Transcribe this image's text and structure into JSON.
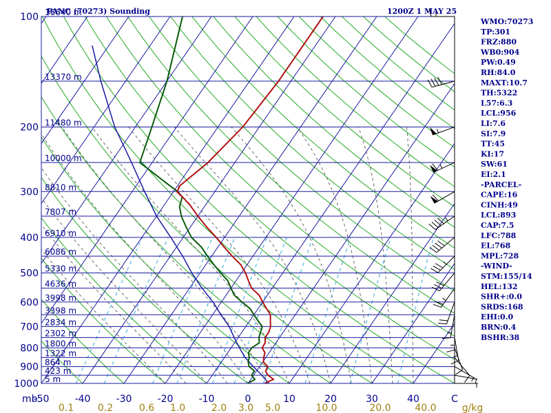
{
  "header": {
    "station": "PANC (70273) Sounding",
    "time": "1200Z  1 MAY 25"
  },
  "sidebar": [
    "WMO:70273",
    "TP:301",
    "FRZ:880",
    "WB0:904",
    "PW:0.49",
    "RH:84.0",
    "MAXT:10.7",
    "TH:5322",
    "L57:6.3",
    "LCL:956",
    "LI:7.6",
    "SI:7.9",
    "TT:45",
    "KI:17",
    "SW:61",
    "EI:2.1",
    "-PARCEL-",
    "CAPE:16",
    "CINH:49",
    "LCL:893",
    "CAP:7.5",
    "LFC:788",
    "EL:768",
    "MPL:728",
    "-WIND-",
    "STM:155/14",
    "HEL:132",
    "SHR+:0.0",
    "SRDS:168",
    "EHI:0.0",
    "BRN:0.4",
    "BSHR:38"
  ],
  "colors": {
    "isobar": "#1a1aa0",
    "isotherm": "#1a1aa0",
    "dry_adiabat": "#22aa22",
    "moist_adiabat": "#666666",
    "mixing_ratio": "#33aadd",
    "temperature": "#b01010",
    "dewpoint": "#0a5a0a",
    "parcel": "#1a1aa0",
    "text": "#00008b",
    "mixing_label": "#a08010"
  },
  "chart_data": {
    "type": "skew-t",
    "xlabel_units_left": "mb",
    "xlabel_units_right": "g/kg",
    "pressure_levels": [
      100,
      200,
      300,
      400,
      500,
      600,
      700,
      800,
      900,
      1000
    ],
    "temperature_ticks": [
      -50,
      -40,
      -30,
      -20,
      -10,
      0,
      10,
      20,
      30,
      40
    ],
    "temperature_tick_labels": [
      "-50",
      "-40",
      "-30",
      "-20",
      "-10",
      "0",
      "10",
      "20",
      "30",
      "40"
    ],
    "temperature_right_label": "C",
    "mixing_ratio_ticks": [
      {
        "t": -44,
        "label": "0.1"
      },
      {
        "t": -34.5,
        "label": "0.2"
      },
      {
        "t": -24.5,
        "label": "0.6"
      },
      {
        "t": -17,
        "label": "1.0"
      },
      {
        "t": -7,
        "label": "2.0"
      },
      {
        "t": -0.5,
        "label": "3.0"
      },
      {
        "t": 6,
        "label": "5.0"
      },
      {
        "t": 19,
        "label": "10.0"
      },
      {
        "t": 32,
        "label": "20.0"
      },
      {
        "t": 43,
        "label": "40.0"
      }
    ],
    "height_labels": [
      {
        "p": 100,
        "label": "16640 m"
      },
      {
        "p": 150,
        "label": "13370 m"
      },
      {
        "p": 200,
        "label": "11480 m"
      },
      {
        "p": 250,
        "label": "10000 m"
      },
      {
        "p": 300,
        "label": "8810 m"
      },
      {
        "p": 350,
        "label": "7807 m"
      },
      {
        "p": 400,
        "label": "6910 m"
      },
      {
        "p": 450,
        "label": "6086 m"
      },
      {
        "p": 500,
        "label": "5330 m"
      },
      {
        "p": 550,
        "label": "4636 m"
      },
      {
        "p": 600,
        "label": "3998 m"
      },
      {
        "p": 650,
        "label": "3398 m"
      },
      {
        "p": 700,
        "label": "2834 m"
      },
      {
        "p": 750,
        "label": "2302 m"
      },
      {
        "p": 800,
        "label": "1800 m"
      },
      {
        "p": 850,
        "label": "1322 m"
      },
      {
        "p": 900,
        "label": "864 m"
      },
      {
        "p": 950,
        "label": "423 m"
      },
      {
        "p": 1000,
        "label": "5 m"
      }
    ],
    "temperature_profile": [
      {
        "p": 1000,
        "t": 4
      },
      {
        "p": 975,
        "t": 5.5
      },
      {
        "p": 950,
        "t": 3.5
      },
      {
        "p": 925,
        "t": 2.2
      },
      {
        "p": 900,
        "t": 2
      },
      {
        "p": 875,
        "t": 0.2
      },
      {
        "p": 850,
        "t": -0.5
      },
      {
        "p": 825,
        "t": -1
      },
      {
        "p": 800,
        "t": -2.5
      },
      {
        "p": 775,
        "t": -2.6
      },
      {
        "p": 750,
        "t": -3.5
      },
      {
        "p": 725,
        "t": -3.5
      },
      {
        "p": 700,
        "t": -4
      },
      {
        "p": 675,
        "t": -5
      },
      {
        "p": 650,
        "t": -6
      },
      {
        "p": 625,
        "t": -8
      },
      {
        "p": 600,
        "t": -10
      },
      {
        "p": 575,
        "t": -12
      },
      {
        "p": 550,
        "t": -15
      },
      {
        "p": 525,
        "t": -17
      },
      {
        "p": 500,
        "t": -19
      },
      {
        "p": 475,
        "t": -21.5
      },
      {
        "p": 450,
        "t": -25
      },
      {
        "p": 425,
        "t": -28.5
      },
      {
        "p": 400,
        "t": -32
      },
      {
        "p": 375,
        "t": -36
      },
      {
        "p": 350,
        "t": -40
      },
      {
        "p": 325,
        "t": -44
      },
      {
        "p": 310,
        "t": -47
      },
      {
        "p": 301,
        "t": -49
      },
      {
        "p": 290,
        "t": -49.5
      },
      {
        "p": 250,
        "t": -46.5
      },
      {
        "p": 200,
        "t": -44
      },
      {
        "p": 150,
        "t": -43
      },
      {
        "p": 100,
        "t": -43
      }
    ],
    "dewpoint_profile": [
      {
        "p": 1000,
        "t": 0
      },
      {
        "p": 975,
        "t": 1
      },
      {
        "p": 950,
        "t": -0.5
      },
      {
        "p": 925,
        "t": -0.5
      },
      {
        "p": 900,
        "t": -2.5
      },
      {
        "p": 875,
        "t": -3.5
      },
      {
        "p": 850,
        "t": -4
      },
      {
        "p": 825,
        "t": -5
      },
      {
        "p": 800,
        "t": -5
      },
      {
        "p": 775,
        "t": -4
      },
      {
        "p": 750,
        "t": -5
      },
      {
        "p": 725,
        "t": -5.5
      },
      {
        "p": 700,
        "t": -6
      },
      {
        "p": 675,
        "t": -8
      },
      {
        "p": 650,
        "t": -10
      },
      {
        "p": 625,
        "t": -12
      },
      {
        "p": 600,
        "t": -15
      },
      {
        "p": 575,
        "t": -18
      },
      {
        "p": 550,
        "t": -20
      },
      {
        "p": 525,
        "t": -22
      },
      {
        "p": 500,
        "t": -25
      },
      {
        "p": 475,
        "t": -28
      },
      {
        "p": 450,
        "t": -31
      },
      {
        "p": 425,
        "t": -34
      },
      {
        "p": 400,
        "t": -38
      },
      {
        "p": 375,
        "t": -41
      },
      {
        "p": 350,
        "t": -44
      },
      {
        "p": 330,
        "t": -46
      },
      {
        "p": 310,
        "t": -47
      },
      {
        "p": 300,
        "t": -49
      },
      {
        "p": 285,
        "t": -53
      },
      {
        "p": 250,
        "t": -63
      },
      {
        "p": 200,
        "t": -66
      },
      {
        "p": 150,
        "t": -70
      },
      {
        "p": 100,
        "t": -77
      }
    ],
    "parcel_profile": [
      {
        "p": 1000,
        "t": 5
      },
      {
        "p": 950,
        "t": 2
      },
      {
        "p": 900,
        "t": -1.5
      },
      {
        "p": 850,
        "t": -5
      },
      {
        "p": 800,
        "t": -8
      },
      {
        "p": 750,
        "t": -11
      },
      {
        "p": 700,
        "t": -14
      },
      {
        "p": 650,
        "t": -18
      },
      {
        "p": 600,
        "t": -22
      },
      {
        "p": 550,
        "t": -27
      },
      {
        "p": 500,
        "t": -32
      },
      {
        "p": 450,
        "t": -37
      },
      {
        "p": 400,
        "t": -43
      },
      {
        "p": 350,
        "t": -50
      },
      {
        "p": 300,
        "t": -57
      },
      {
        "p": 250,
        "t": -65
      },
      {
        "p": 200,
        "t": -75
      },
      {
        "p": 150,
        "t": -86
      },
      {
        "p": 120,
        "t": -94
      }
    ],
    "wind_barbs": [
      {
        "p": 100,
        "dir": 270,
        "spd": 15
      },
      {
        "p": 150,
        "dir": 255,
        "spd": 40
      },
      {
        "p": 200,
        "dir": 250,
        "spd": 55
      },
      {
        "p": 250,
        "dir": 245,
        "spd": 65
      },
      {
        "p": 300,
        "dir": 240,
        "spd": 60
      },
      {
        "p": 350,
        "dir": 235,
        "spd": 45
      },
      {
        "p": 400,
        "dir": 230,
        "spd": 40
      },
      {
        "p": 450,
        "dir": 225,
        "spd": 35
      },
      {
        "p": 500,
        "dir": 220,
        "spd": 30
      },
      {
        "p": 550,
        "dir": 215,
        "spd": 25
      },
      {
        "p": 600,
        "dir": 200,
        "spd": 20
      },
      {
        "p": 650,
        "dir": 190,
        "spd": 15
      },
      {
        "p": 700,
        "dir": 180,
        "spd": 15
      },
      {
        "p": 750,
        "dir": 170,
        "spd": 15
      },
      {
        "p": 800,
        "dir": 160,
        "spd": 10
      },
      {
        "p": 850,
        "dir": 140,
        "spd": 10
      },
      {
        "p": 900,
        "dir": 120,
        "spd": 5
      },
      {
        "p": 950,
        "dir": 100,
        "spd": 5
      },
      {
        "p": 1000,
        "dir": 90,
        "spd": 5
      }
    ]
  }
}
